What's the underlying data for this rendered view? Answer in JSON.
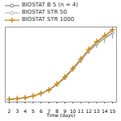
{
  "chart_data": {
    "type": "line",
    "xlabel": "Time (days)",
    "x": [
      2,
      3,
      4,
      5,
      6,
      7,
      8,
      9,
      10,
      11,
      12,
      13,
      14,
      15
    ],
    "series": [
      {
        "name": "BIOSTAT B 5 (n = 4)",
        "color": "#888888",
        "marker": "circle",
        "values": [
          0.01,
          0.02,
          0.03,
          0.05,
          0.08,
          0.12,
          0.18,
          0.26,
          0.36,
          0.46,
          0.57,
          0.65,
          0.72,
          0.78
        ],
        "errors": [
          0.005,
          0.005,
          0.007,
          0.008,
          0.01,
          0.012,
          0.015,
          0.02,
          0.03,
          0.035,
          0.04,
          0.05,
          0.06,
          0.07
        ]
      },
      {
        "name": "BIOSTAT STR 50",
        "color": "#bbbbbb",
        "marker": "circle",
        "values": [
          0.01,
          0.02,
          0.03,
          0.05,
          0.08,
          0.12,
          0.18,
          0.27,
          0.37,
          0.47,
          0.58,
          0.67,
          0.74,
          0.81
        ]
      },
      {
        "name": "BIOSTAT STR 1000",
        "color": "#c8860a",
        "marker": "plus",
        "values": [
          0.01,
          0.02,
          0.03,
          0.05,
          0.08,
          0.12,
          0.19,
          0.27,
          0.37,
          0.48,
          0.59,
          0.68,
          0.75,
          0.82
        ]
      }
    ],
    "xlim": [
      1.5,
      15.5
    ],
    "ylim": [
      -0.02,
      0.85
    ],
    "xticks": [
      2,
      3,
      4,
      5,
      6,
      7,
      8,
      9,
      10,
      11,
      12,
      13,
      14,
      15
    ],
    "yticks": [],
    "tick_labels": "x",
    "legend": "upper left"
  }
}
